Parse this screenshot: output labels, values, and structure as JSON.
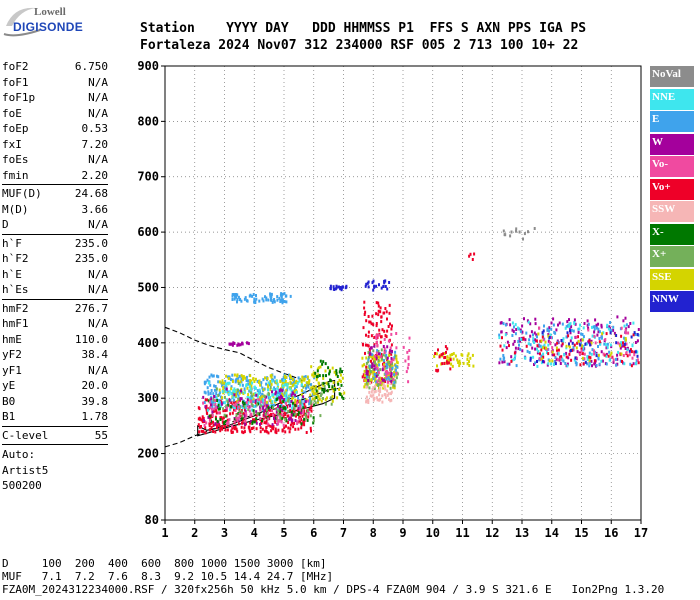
{
  "logo": {
    "top": "Lowell",
    "bottom": "DIGISONDE"
  },
  "header": {
    "line1": "Station    YYYY DAY   DDD HHMMSS P1  FFS S AXN PPS IGA PS",
    "line2": "Fortaleza 2024 Nov07 312 234000 RSF 005 2 713 100 10+ 22"
  },
  "params": {
    "group1": [
      {
        "k": "foF2",
        "v": "6.750"
      },
      {
        "k": "foF1",
        "v": "N/A"
      },
      {
        "k": "foF1p",
        "v": "N/A"
      },
      {
        "k": "foE",
        "v": "N/A"
      },
      {
        "k": "foEp",
        "v": "0.53"
      },
      {
        "k": "fxI",
        "v": "7.20"
      },
      {
        "k": "foEs",
        "v": "N/A"
      },
      {
        "k": "fmin",
        "v": "2.20"
      }
    ],
    "group2": [
      {
        "k": "MUF(D)",
        "v": "24.68"
      },
      {
        "k": "M(D)",
        "v": "3.66"
      },
      {
        "k": "D",
        "v": "N/A"
      }
    ],
    "group3": [
      {
        "k": "h`F",
        "v": "235.0"
      },
      {
        "k": "h`F2",
        "v": "235.0"
      },
      {
        "k": "h`E",
        "v": "N/A"
      },
      {
        "k": "h`Es",
        "v": "N/A"
      }
    ],
    "group4": [
      {
        "k": "hmF2",
        "v": "276.7"
      },
      {
        "k": "hmF1",
        "v": "N/A"
      },
      {
        "k": "hmE",
        "v": "110.0"
      },
      {
        "k": "yF2",
        "v": "38.4"
      },
      {
        "k": "yF1",
        "v": "N/A"
      },
      {
        "k": "yE",
        "v": "20.0"
      },
      {
        "k": "B0",
        "v": "39.8"
      },
      {
        "k": "B1",
        "v": "1.78"
      }
    ],
    "group5": [
      {
        "k": "C-level",
        "v": "55"
      }
    ],
    "auto_label": "Auto:",
    "auto_name": "Artist5",
    "auto_code": "500200"
  },
  "bottom": {
    "line1": "D     100  200  400  600  800 1000 1500 3000 [km]",
    "line2": "MUF   7.1  7.2  7.6  8.3  9.2 10.5 14.4 24.7 [MHz]",
    "line3": "FZA0M_2024312234000.RSF / 320fx256h 50 kHz 5.0 km / DPS-4 FZA0M 904 / 3.9 S 321.6 E   Ion2Png 1.3.20"
  },
  "legend": [
    {
      "label": "NoVal",
      "color": "#8c8c8c"
    },
    {
      "label": "NNE",
      "color": "#3ee6ee"
    },
    {
      "label": "E",
      "color": "#3fa3ec"
    },
    {
      "label": "W",
      "color": "#a4009c"
    },
    {
      "label": "Vo-",
      "color": "#f04aa0"
    },
    {
      "label": "Vo+",
      "color": "#ee0028"
    },
    {
      "label": "SSW",
      "color": "#f6b6b6"
    },
    {
      "label": "X-",
      "color": "#007800"
    },
    {
      "label": "X+",
      "color": "#74b05a"
    },
    {
      "label": "SSE",
      "color": "#d4d400"
    },
    {
      "label": "NNW",
      "color": "#2222d0"
    }
  ],
  "chart_data": {
    "type": "scatter",
    "xlabel": "",
    "ylabel": "",
    "xlim": [
      1,
      17
    ],
    "ylim": [
      80,
      900
    ],
    "x_ticks": [
      1,
      2,
      3,
      4,
      5,
      6,
      7,
      8,
      9,
      10,
      11,
      12,
      13,
      14,
      15,
      16,
      17
    ],
    "y_ticks": [
      80,
      200,
      300,
      400,
      500,
      600,
      700,
      800,
      900
    ],
    "grid": "dotted",
    "legend_position": "right",
    "clusters": [
      {
        "color": "#ee0028",
        "x": [
          2.1,
          5.9
        ],
        "y": [
          240,
          300
        ],
        "n": 320
      },
      {
        "color": "#3fa3ec",
        "x": [
          2.3,
          6.0
        ],
        "y": [
          285,
          345
        ],
        "n": 260
      },
      {
        "color": "#d4d400",
        "x": [
          2.8,
          6.2
        ],
        "y": [
          295,
          345
        ],
        "n": 160
      },
      {
        "color": "#3ee6ee",
        "x": [
          2.4,
          5.6
        ],
        "y": [
          280,
          335
        ],
        "n": 120
      },
      {
        "color": "#a4009c",
        "x": [
          2.2,
          5.8
        ],
        "y": [
          255,
          320
        ],
        "n": 90
      },
      {
        "color": "#007800",
        "x": [
          2.4,
          6.0
        ],
        "y": [
          255,
          305
        ],
        "n": 70
      },
      {
        "color": "#74b05a",
        "x": [
          2.6,
          6.6
        ],
        "y": [
          260,
          330
        ],
        "n": 70
      },
      {
        "color": "#f04aa0",
        "x": [
          2.2,
          5.8
        ],
        "y": [
          250,
          300
        ],
        "n": 70
      },
      {
        "color": "#d4d400",
        "x": [
          5.8,
          7.0
        ],
        "y": [
          295,
          360
        ],
        "n": 50
      },
      {
        "color": "#007800",
        "x": [
          6.0,
          7.0
        ],
        "y": [
          300,
          370
        ],
        "n": 40
      },
      {
        "color": "#3fa3ec",
        "x": [
          3.2,
          5.2
        ],
        "y": [
          475,
          492
        ],
        "n": 70
      },
      {
        "color": "#a4009c",
        "x": [
          3.0,
          3.8
        ],
        "y": [
          398,
          403
        ],
        "n": 18
      },
      {
        "color": "#2222d0",
        "x": [
          6.5,
          7.1
        ],
        "y": [
          498,
          505
        ],
        "n": 20
      },
      {
        "color": "#2222d0",
        "x": [
          7.7,
          8.5
        ],
        "y": [
          498,
          515
        ],
        "n": 22
      },
      {
        "color": "#ee0028",
        "x": [
          7.6,
          8.6
        ],
        "y": [
          330,
          480
        ],
        "n": 120
      },
      {
        "color": "#d4d400",
        "x": [
          7.6,
          8.8
        ],
        "y": [
          320,
          380
        ],
        "n": 90
      },
      {
        "color": "#74b05a",
        "x": [
          7.7,
          8.8
        ],
        "y": [
          320,
          390
        ],
        "n": 60
      },
      {
        "color": "#3fa3ec",
        "x": [
          7.7,
          8.8
        ],
        "y": [
          330,
          390
        ],
        "n": 40
      },
      {
        "color": "#f6b6b6",
        "x": [
          7.7,
          8.6
        ],
        "y": [
          295,
          330
        ],
        "n": 50
      },
      {
        "color": "#f04aa0",
        "x": [
          8.0,
          9.2
        ],
        "y": [
          330,
          420
        ],
        "n": 50
      },
      {
        "color": "#a4009c",
        "x": [
          7.7,
          8.6
        ],
        "y": [
          330,
          400
        ],
        "n": 30
      },
      {
        "color": "#d4d400",
        "x": [
          10.0,
          11.5
        ],
        "y": [
          360,
          385
        ],
        "n": 40
      },
      {
        "color": "#ee0028",
        "x": [
          10.0,
          10.6
        ],
        "y": [
          350,
          400
        ],
        "n": 20
      },
      {
        "color": "#a4009c",
        "x": [
          12.2,
          16.9
        ],
        "y": [
          360,
          450
        ],
        "n": 160
      },
      {
        "color": "#3fa3ec",
        "x": [
          12.2,
          16.9
        ],
        "y": [
          360,
          440
        ],
        "n": 130
      },
      {
        "color": "#3ee6ee",
        "x": [
          12.2,
          16.9
        ],
        "y": [
          360,
          440
        ],
        "n": 80
      },
      {
        "color": "#ee0028",
        "x": [
          12.2,
          16.9
        ],
        "y": [
          360,
          420
        ],
        "n": 60
      },
      {
        "color": "#f04aa0",
        "x": [
          13.5,
          16.9
        ],
        "y": [
          370,
          430
        ],
        "n": 40
      },
      {
        "color": "#d4d400",
        "x": [
          13.5,
          16.5
        ],
        "y": [
          370,
          420
        ],
        "n": 30
      },
      {
        "color": "#2222d0",
        "x": [
          13.2,
          16.9
        ],
        "y": [
          365,
          425
        ],
        "n": 30
      },
      {
        "color": "#8c8c8c",
        "x": [
          12.3,
          13.4
        ],
        "y": [
          590,
          610
        ],
        "n": 12
      },
      {
        "color": "#ee0028",
        "x": [
          11.1,
          11.4
        ],
        "y": [
          545,
          575
        ],
        "n": 4
      }
    ],
    "profile_curves": [
      {
        "style": "dashed",
        "points": [
          [
            1,
            428
          ],
          [
            1.5,
            418
          ],
          [
            2,
            405
          ],
          [
            2.5,
            395
          ],
          [
            3,
            388
          ],
          [
            3.5,
            382
          ],
          [
            4,
            368
          ],
          [
            4.5,
            355
          ],
          [
            5,
            345
          ],
          [
            5.5,
            335
          ],
          [
            6,
            322
          ],
          [
            6.5,
            315
          ],
          [
            6.9,
            318
          ]
        ]
      },
      {
        "style": "dashed",
        "points": [
          [
            1,
            212
          ],
          [
            1.5,
            220
          ],
          [
            2,
            232
          ],
          [
            2.5,
            242
          ],
          [
            3,
            252
          ],
          [
            3.5,
            262
          ],
          [
            4,
            270
          ],
          [
            4.5,
            278
          ],
          [
            5,
            285
          ],
          [
            5.5,
            295
          ],
          [
            6,
            305
          ],
          [
            6.5,
            315
          ],
          [
            6.9,
            318
          ]
        ]
      },
      {
        "style": "solid",
        "points": [
          [
            2.1,
            250
          ],
          [
            2.4,
            242
          ],
          [
            3,
            248
          ],
          [
            3.5,
            258
          ],
          [
            4,
            268
          ],
          [
            4.5,
            282
          ],
          [
            5,
            295
          ],
          [
            5.5,
            305
          ],
          [
            6,
            318
          ],
          [
            6.5,
            330
          ],
          [
            6.7,
            332
          ],
          [
            6.7,
            300
          ],
          [
            6.3,
            290
          ],
          [
            5.8,
            283
          ],
          [
            5,
            272
          ],
          [
            4.5,
            266
          ],
          [
            4,
            260
          ],
          [
            3.5,
            253
          ],
          [
            3,
            246
          ],
          [
            2.5,
            238
          ],
          [
            2.1,
            232
          ]
        ]
      }
    ]
  }
}
